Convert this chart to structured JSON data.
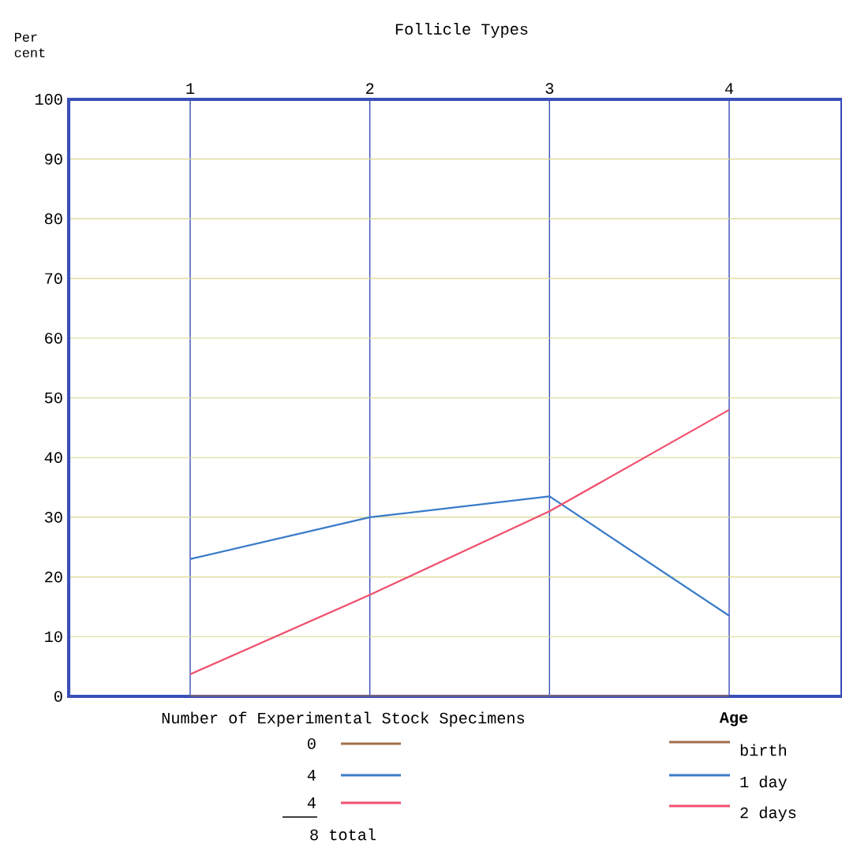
{
  "chart_data": {
    "type": "line",
    "xlabel": "Follicle Types",
    "ylabel": "Per cent",
    "categories": [
      "1",
      "2",
      "3",
      "4"
    ],
    "series": [
      {
        "name": "birth",
        "color": "#a0704a",
        "values": [
          0,
          0,
          0,
          0
        ]
      },
      {
        "name": "1 day",
        "color": "#3a7bc8",
        "values": [
          23,
          30,
          33.5,
          13.5
        ]
      },
      {
        "name": "2 days",
        "color": "#f0506e",
        "values": [
          3.7,
          17,
          31,
          48
        ]
      }
    ],
    "ylim": [
      0,
      100
    ],
    "yticks": [
      0,
      10,
      20,
      30,
      40,
      50,
      60,
      70,
      80,
      90,
      100
    ],
    "grid": true,
    "legend": "bottom right",
    "legend_title": "Age",
    "marker": "none",
    "line_style": "solid",
    "annotations": [
      "Number of Experimental Stock Specimens",
      "0",
      "4",
      "4",
      "8 total"
    ]
  }
}
